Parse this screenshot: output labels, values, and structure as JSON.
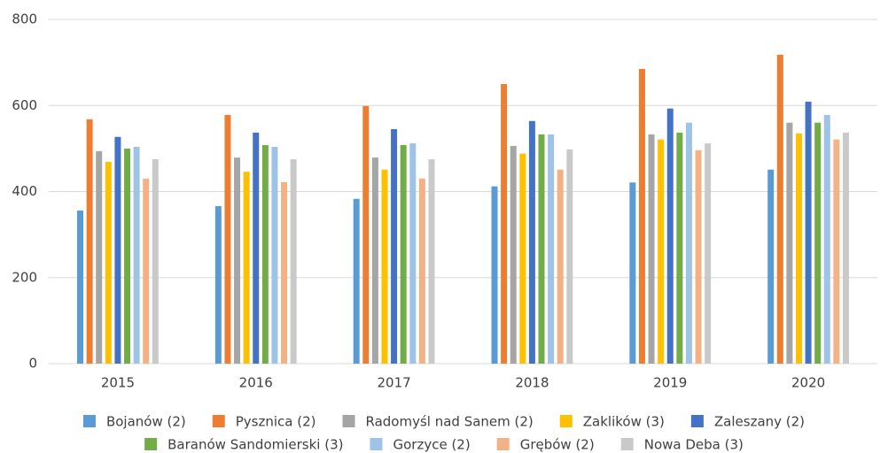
{
  "chart_data": {
    "type": "bar",
    "categories": [
      "2015",
      "2016",
      "2017",
      "2018",
      "2019",
      "2020"
    ],
    "series": [
      {
        "name": "Bojanów (2)",
        "color": "#5b9bd5",
        "values": [
          356,
          366,
          383,
          412,
          421,
          451
        ]
      },
      {
        "name": "Pysznica (2)",
        "color": "#ed7d31",
        "values": [
          568,
          578,
          599,
          650,
          685,
          718
        ]
      },
      {
        "name": "Radomyśl nad Sanem (2)",
        "color": "#a5a5a5",
        "values": [
          494,
          479,
          479,
          506,
          533,
          560
        ]
      },
      {
        "name": "Zaklików (3)",
        "color": "#ffc000",
        "values": [
          469,
          446,
          451,
          488,
          521,
          535
        ]
      },
      {
        "name": "Zaleszany (2)",
        "color": "#4472c4",
        "values": [
          527,
          537,
          545,
          564,
          593,
          609
        ]
      },
      {
        "name": "Baranów Sandomierski (3)",
        "color": "#70ad47",
        "values": [
          500,
          508,
          508,
          533,
          537,
          560
        ]
      },
      {
        "name": "Gorzyce (2)",
        "color": "#9dc3e6",
        "values": [
          504,
          504,
          512,
          533,
          560,
          578
        ]
      },
      {
        "name": "Grębów (2)",
        "color": "#f4b183",
        "values": [
          430,
          422,
          430,
          451,
          496,
          521
        ]
      },
      {
        "name": "Nowa Deba (3)",
        "color": "#c9c9c9",
        "values": [
          475,
          475,
          475,
          498,
          512,
          537
        ]
      }
    ],
    "ylim": [
      0,
      800
    ],
    "yticks": [
      0,
      200,
      400,
      600,
      800
    ],
    "grid": true,
    "legend": "bottom"
  }
}
